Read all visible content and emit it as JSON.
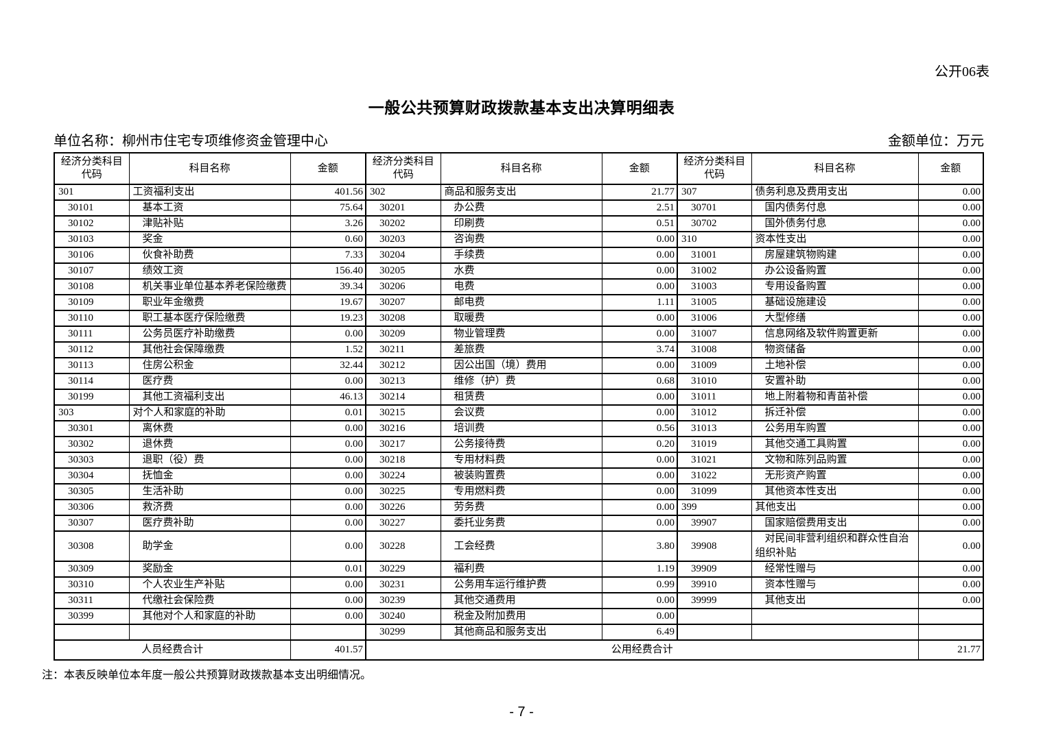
{
  "page": {
    "form_label": "公开06表",
    "title": "一般公共预算财政拨款基本支出决算明细表",
    "unit_label": "单位名称：柳州市住宅专项维修资金管理中心",
    "amount_unit_label": "金额单位：万元",
    "note": "注：本表反映单位本年度一般公共预算财政拨款基本支出明细情况。",
    "page_number": "- 7 -"
  },
  "table": {
    "header": {
      "code": "经济分类科目代码",
      "name": "科目名称",
      "amount": "金额"
    },
    "rows": [
      [
        {
          "code": "301",
          "name": "工资福利支出",
          "amt": "401.56",
          "lv": 0
        },
        {
          "code": "302",
          "name": "商品和服务支出",
          "amt": "21.77",
          "lv": 0
        },
        {
          "code": "307",
          "name": "债务利息及费用支出",
          "amt": "0.00",
          "lv": 0
        }
      ],
      [
        {
          "code": "30101",
          "name": "基本工资",
          "amt": "75.64",
          "lv": 1
        },
        {
          "code": "30201",
          "name": "办公费",
          "amt": "2.51",
          "lv": 1
        },
        {
          "code": "30701",
          "name": "国内债务付息",
          "amt": "0.00",
          "lv": 1
        }
      ],
      [
        {
          "code": "30102",
          "name": "津贴补贴",
          "amt": "3.26",
          "lv": 1
        },
        {
          "code": "30202",
          "name": "印刷费",
          "amt": "0.51",
          "lv": 1
        },
        {
          "code": "30702",
          "name": "国外债务付息",
          "amt": "0.00",
          "lv": 1
        }
      ],
      [
        {
          "code": "30103",
          "name": "奖金",
          "amt": "0.60",
          "lv": 1
        },
        {
          "code": "30203",
          "name": "咨询费",
          "amt": "0.00",
          "lv": 1
        },
        {
          "code": "310",
          "name": "资本性支出",
          "amt": "0.00",
          "lv": 0
        }
      ],
      [
        {
          "code": "30106",
          "name": "伙食补助费",
          "amt": "7.33",
          "lv": 1
        },
        {
          "code": "30204",
          "name": "手续费",
          "amt": "0.00",
          "lv": 1
        },
        {
          "code": "31001",
          "name": "房屋建筑物购建",
          "amt": "0.00",
          "lv": 1
        }
      ],
      [
        {
          "code": "30107",
          "name": "绩效工资",
          "amt": "156.40",
          "lv": 1
        },
        {
          "code": "30205",
          "name": "水费",
          "amt": "0.00",
          "lv": 1
        },
        {
          "code": "31002",
          "name": "办公设备购置",
          "amt": "0.00",
          "lv": 1
        }
      ],
      [
        {
          "code": "30108",
          "name": "机关事业单位基本养老保险缴费",
          "amt": "39.34",
          "lv": 1
        },
        {
          "code": "30206",
          "name": "电费",
          "amt": "0.00",
          "lv": 1
        },
        {
          "code": "31003",
          "name": "专用设备购置",
          "amt": "0.00",
          "lv": 1
        }
      ],
      [
        {
          "code": "30109",
          "name": "职业年金缴费",
          "amt": "19.67",
          "lv": 1
        },
        {
          "code": "30207",
          "name": "邮电费",
          "amt": "1.11",
          "lv": 1
        },
        {
          "code": "31005",
          "name": "基础设施建设",
          "amt": "0.00",
          "lv": 1
        }
      ],
      [
        {
          "code": "30110",
          "name": "职工基本医疗保险缴费",
          "amt": "19.23",
          "lv": 1
        },
        {
          "code": "30208",
          "name": "取暖费",
          "amt": "0.00",
          "lv": 1
        },
        {
          "code": "31006",
          "name": "大型修缮",
          "amt": "0.00",
          "lv": 1
        }
      ],
      [
        {
          "code": "30111",
          "name": "公务员医疗补助缴费",
          "amt": "0.00",
          "lv": 1
        },
        {
          "code": "30209",
          "name": "物业管理费",
          "amt": "0.00",
          "lv": 1
        },
        {
          "code": "31007",
          "name": "信息网络及软件购置更新",
          "amt": "0.00",
          "lv": 1
        }
      ],
      [
        {
          "code": "30112",
          "name": "其他社会保障缴费",
          "amt": "1.52",
          "lv": 1
        },
        {
          "code": "30211",
          "name": "差旅费",
          "amt": "3.74",
          "lv": 1
        },
        {
          "code": "31008",
          "name": "物资储备",
          "amt": "0.00",
          "lv": 1
        }
      ],
      [
        {
          "code": "30113",
          "name": "住房公积金",
          "amt": "32.44",
          "lv": 1
        },
        {
          "code": "30212",
          "name": "因公出国（境）费用",
          "amt": "0.00",
          "lv": 1
        },
        {
          "code": "31009",
          "name": "土地补偿",
          "amt": "0.00",
          "lv": 1
        }
      ],
      [
        {
          "code": "30114",
          "name": "医疗费",
          "amt": "0.00",
          "lv": 1
        },
        {
          "code": "30213",
          "name": "维修（护）费",
          "amt": "0.68",
          "lv": 1
        },
        {
          "code": "31010",
          "name": "安置补助",
          "amt": "0.00",
          "lv": 1
        }
      ],
      [
        {
          "code": "30199",
          "name": "其他工资福利支出",
          "amt": "46.13",
          "lv": 1
        },
        {
          "code": "30214",
          "name": "租赁费",
          "amt": "0.00",
          "lv": 1
        },
        {
          "code": "31011",
          "name": "地上附着物和青苗补偿",
          "amt": "0.00",
          "lv": 1
        }
      ],
      [
        {
          "code": "303",
          "name": "对个人和家庭的补助",
          "amt": "0.01",
          "lv": 0
        },
        {
          "code": "30215",
          "name": "会议费",
          "amt": "0.00",
          "lv": 1
        },
        {
          "code": "31012",
          "name": "拆迁补偿",
          "amt": "0.00",
          "lv": 1
        }
      ],
      [
        {
          "code": "30301",
          "name": "离休费",
          "amt": "0.00",
          "lv": 1
        },
        {
          "code": "30216",
          "name": "培训费",
          "amt": "0.56",
          "lv": 1
        },
        {
          "code": "31013",
          "name": "公务用车购置",
          "amt": "0.00",
          "lv": 1
        }
      ],
      [
        {
          "code": "30302",
          "name": "退休费",
          "amt": "0.00",
          "lv": 1
        },
        {
          "code": "30217",
          "name": "公务接待费",
          "amt": "0.20",
          "lv": 1
        },
        {
          "code": "31019",
          "name": "其他交通工具购置",
          "amt": "0.00",
          "lv": 1
        }
      ],
      [
        {
          "code": "30303",
          "name": "退职（役）费",
          "amt": "0.00",
          "lv": 1
        },
        {
          "code": "30218",
          "name": "专用材料费",
          "amt": "0.00",
          "lv": 1
        },
        {
          "code": "31021",
          "name": "文物和陈列品购置",
          "amt": "0.00",
          "lv": 1
        }
      ],
      [
        {
          "code": "30304",
          "name": "抚恤金",
          "amt": "0.00",
          "lv": 1
        },
        {
          "code": "30224",
          "name": "被装购置费",
          "amt": "0.00",
          "lv": 1
        },
        {
          "code": "31022",
          "name": "无形资产购置",
          "amt": "0.00",
          "lv": 1
        }
      ],
      [
        {
          "code": "30305",
          "name": "生活补助",
          "amt": "0.00",
          "lv": 1
        },
        {
          "code": "30225",
          "name": "专用燃料费",
          "amt": "0.00",
          "lv": 1
        },
        {
          "code": "31099",
          "name": "其他资本性支出",
          "amt": "0.00",
          "lv": 1
        }
      ],
      [
        {
          "code": "30306",
          "name": "救济费",
          "amt": "0.00",
          "lv": 1
        },
        {
          "code": "30226",
          "name": "劳务费",
          "amt": "0.00",
          "lv": 1
        },
        {
          "code": "399",
          "name": "其他支出",
          "amt": "0.00",
          "lv": 0
        }
      ],
      [
        {
          "code": "30307",
          "name": "医疗费补助",
          "amt": "0.00",
          "lv": 1
        },
        {
          "code": "30227",
          "name": "委托业务费",
          "amt": "0.00",
          "lv": 1
        },
        {
          "code": "39907",
          "name": "国家赔偿费用支出",
          "amt": "0.00",
          "lv": 1
        }
      ],
      [
        {
          "code": "30308",
          "name": "助学金",
          "amt": "0.00",
          "lv": 1
        },
        {
          "code": "30228",
          "name": "工会经费",
          "amt": "3.80",
          "lv": 1
        },
        {
          "code": "39908",
          "name": "对民间非营利组织和群众性自治组织补贴",
          "amt": "0.00",
          "lv": 1
        }
      ],
      [
        {
          "code": "30309",
          "name": "奖励金",
          "amt": "0.01",
          "lv": 1
        },
        {
          "code": "30229",
          "name": "福利费",
          "amt": "1.19",
          "lv": 1
        },
        {
          "code": "39909",
          "name": "经常性赠与",
          "amt": "0.00",
          "lv": 1
        }
      ],
      [
        {
          "code": "30310",
          "name": "个人农业生产补贴",
          "amt": "0.00",
          "lv": 1
        },
        {
          "code": "30231",
          "name": "公务用车运行维护费",
          "amt": "0.99",
          "lv": 1
        },
        {
          "code": "39910",
          "name": "资本性赠与",
          "amt": "0.00",
          "lv": 1
        }
      ],
      [
        {
          "code": "30311",
          "name": "代缴社会保险费",
          "amt": "0.00",
          "lv": 1
        },
        {
          "code": "30239",
          "name": "其他交通费用",
          "amt": "0.00",
          "lv": 1
        },
        {
          "code": "39999",
          "name": "其他支出",
          "amt": "0.00",
          "lv": 1
        }
      ],
      [
        {
          "code": "30399",
          "name": "其他对个人和家庭的补助",
          "amt": "0.00",
          "lv": 1
        },
        {
          "code": "30240",
          "name": "税金及附加费用",
          "amt": "0.00",
          "lv": 1
        },
        {
          "code": "",
          "name": "",
          "amt": "",
          "lv": 0
        }
      ],
      [
        {
          "code": "",
          "name": "",
          "amt": "",
          "lv": 0
        },
        {
          "code": "30299",
          "name": "其他商品和服务支出",
          "amt": "6.49",
          "lv": 1
        },
        {
          "code": "",
          "name": "",
          "amt": "",
          "lv": 0
        }
      ]
    ],
    "summary": {
      "personnel_label": "人员经费合计",
      "personnel_amount": "401.57",
      "public_label": "公用经费合计",
      "public_amount": "21.77"
    }
  }
}
